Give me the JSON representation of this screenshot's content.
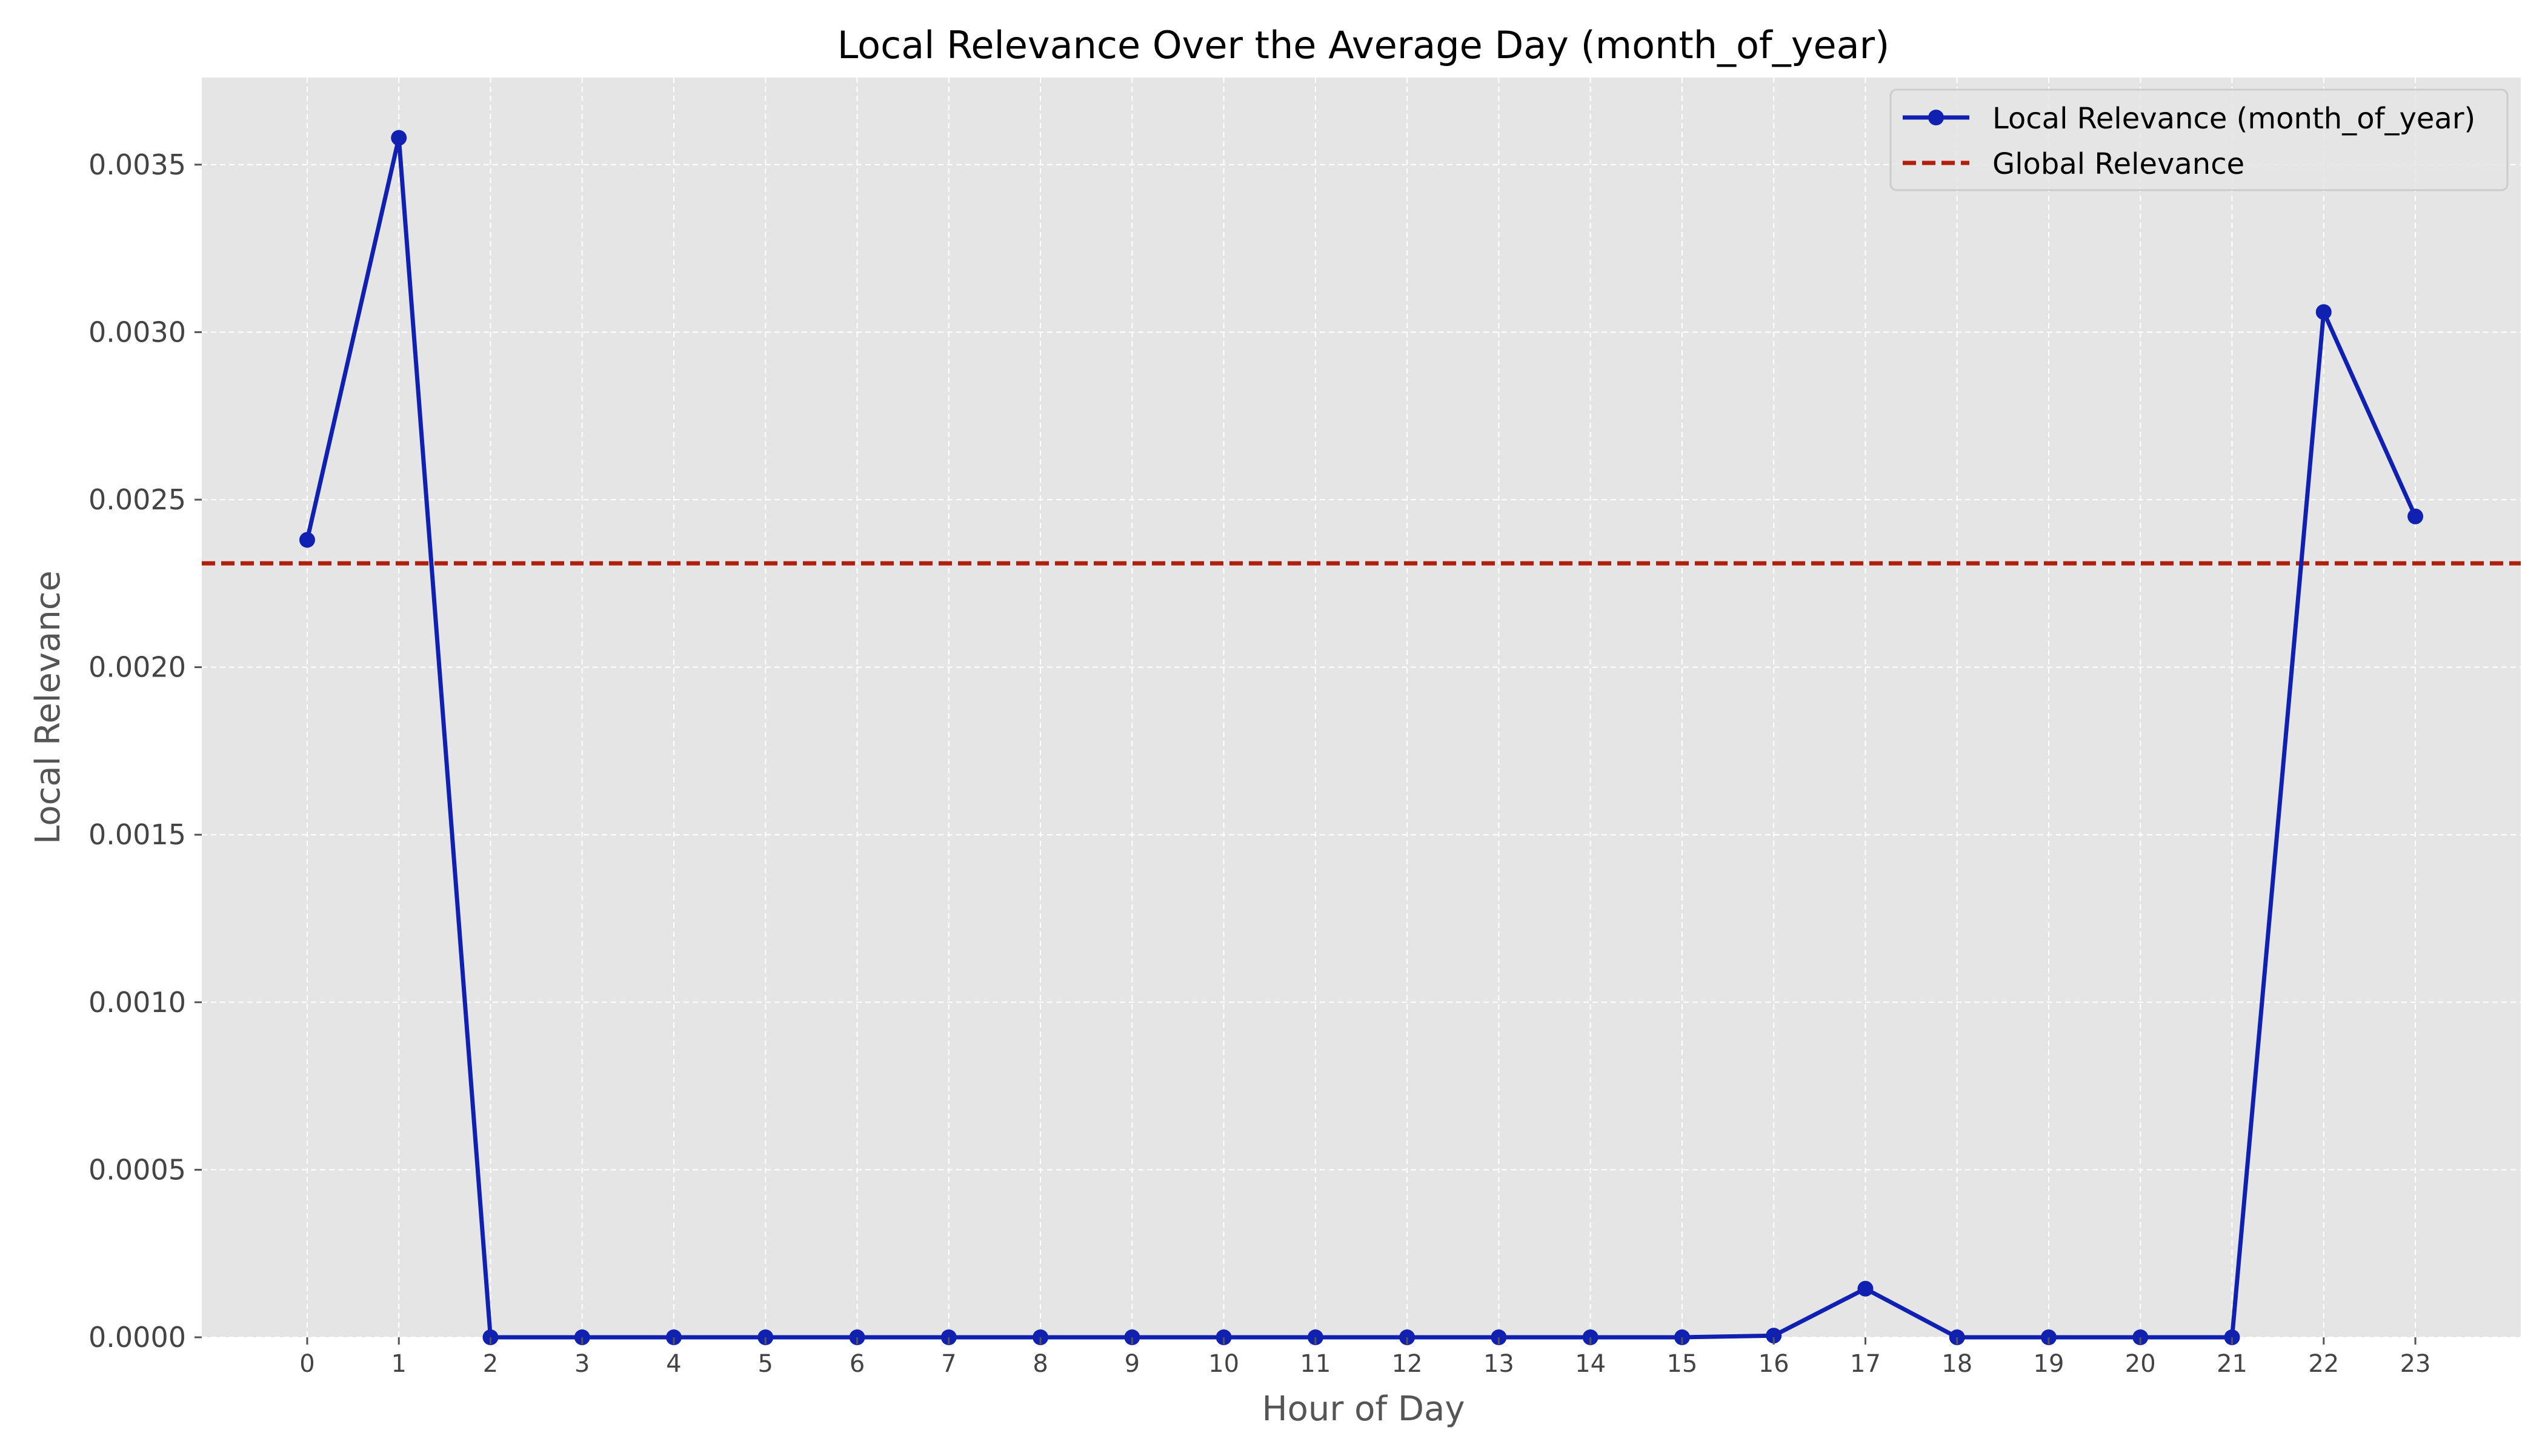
{
  "chart_data": {
    "type": "line",
    "title": "Local Relevance Over the Average Day (month_of_year)",
    "xlabel": "Hour of Day",
    "ylabel": "Local Relevance",
    "x": [
      0,
      1,
      2,
      3,
      4,
      5,
      6,
      7,
      8,
      9,
      10,
      11,
      12,
      13,
      14,
      15,
      16,
      17,
      18,
      19,
      20,
      21,
      22,
      23
    ],
    "x_tick_labels": [
      "0",
      "1",
      "2",
      "3",
      "4",
      "5",
      "6",
      "7",
      "8",
      "9",
      "10",
      "11",
      "12",
      "13",
      "14",
      "15",
      "16",
      "17",
      "18",
      "19",
      "20",
      "21",
      "22",
      "23"
    ],
    "xlim": [
      -1.15,
      24.15
    ],
    "ylim": [
      0,
      0.00376
    ],
    "y_ticks": [
      0,
      0.0005,
      0.001,
      0.0015,
      0.002,
      0.0025,
      0.003,
      0.0035
    ],
    "y_tick_labels": [
      "0.0000",
      "0.0005",
      "0.0010",
      "0.0015",
      "0.0020",
      "0.0025",
      "0.0030",
      "0.0035"
    ],
    "series": [
      {
        "name": "Local Relevance (month_of_year)",
        "color": "#1020b0",
        "values": [
          0.00238,
          0.00358,
          0,
          0,
          0,
          0,
          0,
          0,
          0,
          0,
          0,
          0,
          0,
          0,
          0,
          0,
          5e-06,
          0.000145,
          0,
          0,
          0,
          0,
          0.00306,
          0.00245
        ]
      }
    ],
    "reference_lines": [
      {
        "name": "Global Relevance",
        "orientation": "horizontal",
        "value": 0.00231,
        "color": "#b01e0e",
        "style": "dashed"
      }
    ],
    "grid": true,
    "legend_position": "top-right",
    "background": "#e5e5e5"
  }
}
